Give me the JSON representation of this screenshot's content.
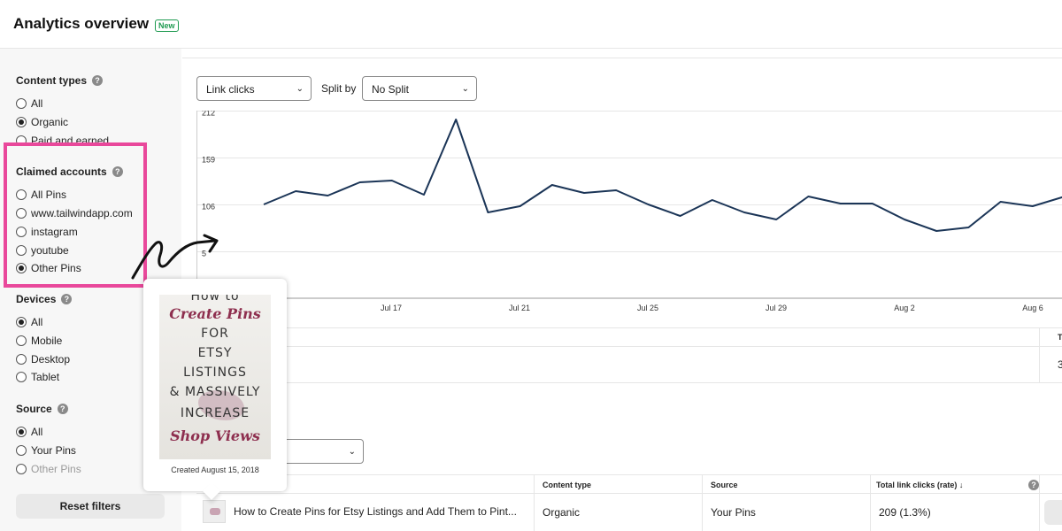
{
  "header": {
    "title": "Analytics overview",
    "badge": "New"
  },
  "sidebar": {
    "groups": [
      {
        "title": "Content types",
        "options": [
          {
            "label": "All",
            "selected": false
          },
          {
            "label": "Organic",
            "selected": true
          },
          {
            "label": "Paid and earned",
            "selected": false
          }
        ]
      },
      {
        "title": "Claimed accounts",
        "options": [
          {
            "label": "All Pins",
            "selected": false
          },
          {
            "label": "www.tailwindapp.com",
            "selected": false
          },
          {
            "label": "instagram",
            "selected": false
          },
          {
            "label": "youtube",
            "selected": false
          },
          {
            "label": "Other Pins",
            "selected": true
          }
        ]
      },
      {
        "title": "Devices",
        "options": [
          {
            "label": "All",
            "selected": true
          },
          {
            "label": "Mobile",
            "selected": false
          },
          {
            "label": "Desktop",
            "selected": false
          },
          {
            "label": "Tablet",
            "selected": false
          }
        ]
      },
      {
        "title": "Source",
        "options": [
          {
            "label": "All",
            "selected": true
          },
          {
            "label": "Your Pins",
            "selected": false
          },
          {
            "label": "Other Pins",
            "selected": false,
            "disabled": true
          }
        ]
      }
    ],
    "reset_label": "Reset filters",
    "help_glyph": "?"
  },
  "controls": {
    "metric_select": "Link clicks",
    "split_label": "Split by",
    "split_select": "No Split",
    "chevron": "⌄"
  },
  "chart_data": {
    "type": "line",
    "y_ticks": [
      "212",
      "159",
      "106",
      "5"
    ],
    "x_ticks": [
      "Jul 17",
      "Jul 21",
      "Jul 25",
      "Jul 29",
      "Aug 2",
      "Aug 6"
    ],
    "ylim": [
      0,
      212
    ],
    "values": [
      106,
      121,
      116,
      131,
      133,
      117,
      202,
      97,
      104,
      128,
      119,
      122,
      106,
      93,
      111,
      97,
      89,
      115,
      107,
      107,
      89,
      76,
      80,
      109,
      104,
      115
    ],
    "line_color": "#1b3557",
    "grid": true
  },
  "table": {
    "dropdown_chevron": "⌄",
    "columns": [
      "Content type",
      "Source",
      "Total link clicks (rate)"
    ],
    "sort_glyph": "↓",
    "row": {
      "title": "How to Create Pins for Etsy Listings and Add Them to Pint...",
      "content_type": "Organic",
      "source": "Your Pins",
      "clicks": "209 (1.3%)"
    },
    "edge_header": "T",
    "edge_value": "3"
  },
  "tooltip": {
    "pin_lines": [
      "How to",
      "Create Pins",
      "FOR",
      "ETSY",
      "LISTINGS",
      "& MASSIVELY",
      "INCREASE",
      "Shop Views"
    ],
    "created": "Created August 15, 2018"
  }
}
